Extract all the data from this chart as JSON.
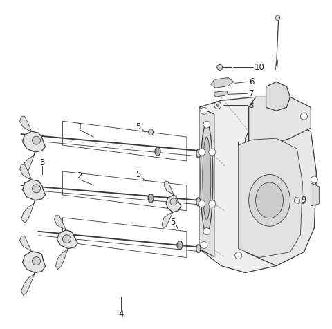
{
  "background_color": "#ffffff",
  "line_color": "#3a3a3a",
  "light_line_color": "#999999",
  "fig_width": 4.8,
  "fig_height": 4.76,
  "dpi": 100,
  "label_fontsize": 8.5,
  "label_color": "#222222"
}
